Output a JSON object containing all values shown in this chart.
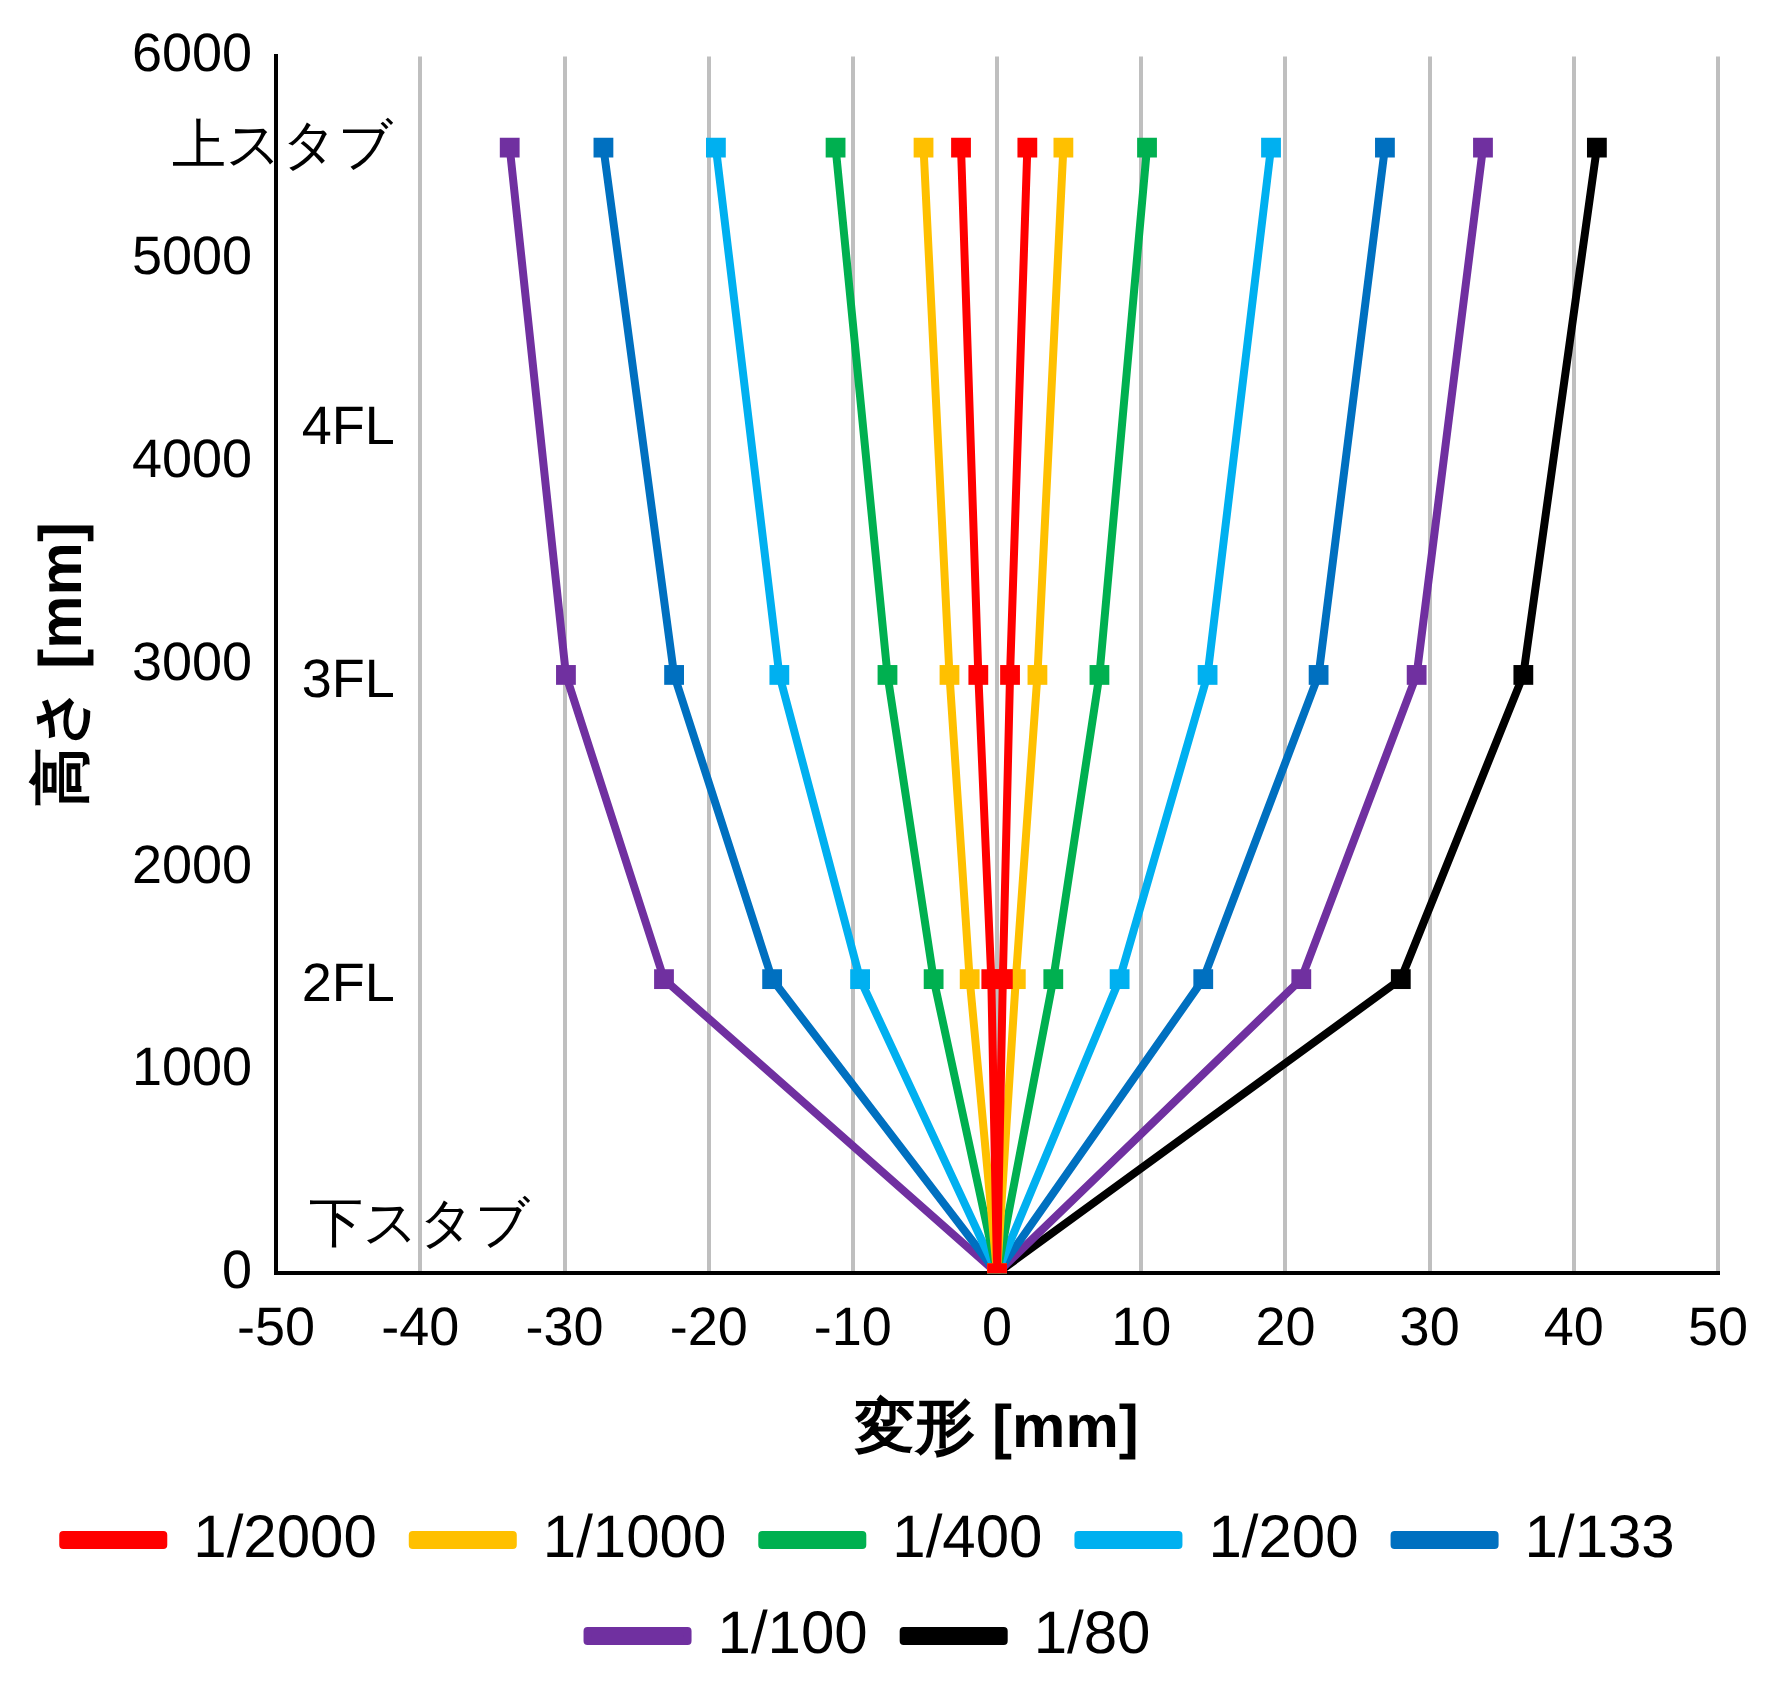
{
  "chart_data": {
    "type": "line",
    "xlabel": "変形 [mm]",
    "ylabel": "高さ [mm]",
    "xlim": [
      -50,
      50
    ],
    "xticks": [
      -50,
      -40,
      -30,
      -20,
      -10,
      0,
      10,
      20,
      30,
      40,
      50
    ],
    "ylim": [
      0,
      6000
    ],
    "yticks": [
      0,
      1000,
      2000,
      3000,
      4000,
      5000,
      6000
    ],
    "grid": "x",
    "legend": "bottom",
    "marker": "square",
    "line_style": "solid",
    "annotations": [
      "上スタブ",
      "4FL",
      "3FL",
      "2FL",
      "下スタブ"
    ],
    "series": [
      {
        "name": "1/2000",
        "color": "#ff0000",
        "x": [
          0,
          0.4,
          0.9,
          2.1
        ],
        "values": [
          0,
          1450,
          2950,
          5550
        ]
      },
      {
        "name": "1/1000",
        "color": "#ffc000",
        "x": [
          0,
          1.3,
          2.8,
          4.6
        ],
        "values": [
          0,
          1450,
          2950,
          5550
        ]
      },
      {
        "name": "1/400",
        "color": "#00b050",
        "x": [
          0,
          3.9,
          7.1,
          10.4
        ],
        "values": [
          0,
          1450,
          2950,
          5550
        ]
      },
      {
        "name": "1/200",
        "color": "#00b0f0",
        "x": [
          0,
          8.5,
          14.6,
          19
        ],
        "values": [
          0,
          1450,
          2950,
          5550
        ]
      },
      {
        "name": "1/133",
        "color": "#0070c0",
        "x": [
          0,
          14.3,
          22.3,
          26.9
        ],
        "values": [
          0,
          1450,
          2950,
          5550
        ]
      },
      {
        "name": "1/100",
        "color": "#7030a0",
        "x": [
          0,
          21.1,
          29.1,
          33.7
        ],
        "values": [
          0,
          1450,
          2950,
          5550
        ]
      },
      {
        "name": "1/80",
        "color": "#000000",
        "x": [
          0,
          28,
          36.5,
          41.6
        ],
        "values": [
          0,
          1450,
          2950,
          5550
        ]
      },
      {
        "color": "#ff0000",
        "x": [
          0,
          -0.4,
          -1.3,
          -2.5
        ],
        "values": [
          0,
          1450,
          2950,
          5550
        ]
      },
      {
        "color": "#ffc000",
        "x": [
          0,
          -1.9,
          -3.3,
          -5.1
        ],
        "values": [
          0,
          1450,
          2950,
          5550
        ]
      },
      {
        "color": "#00b050",
        "x": [
          0,
          -4.4,
          -7.6,
          -11.2
        ],
        "values": [
          0,
          1450,
          2950,
          5550
        ]
      },
      {
        "color": "#00b0f0",
        "x": [
          0,
          -9.5,
          -15.1,
          -19.5
        ],
        "values": [
          0,
          1450,
          2950,
          5550
        ]
      },
      {
        "color": "#0070c0",
        "x": [
          0,
          -15.6,
          -22.4,
          -27.3
        ],
        "values": [
          0,
          1450,
          2950,
          5550
        ]
      },
      {
        "color": "#7030a0",
        "x": [
          0,
          -23.1,
          -29.9,
          -33.8
        ],
        "values": [
          0,
          1450,
          2950,
          5550
        ]
      }
    ]
  }
}
